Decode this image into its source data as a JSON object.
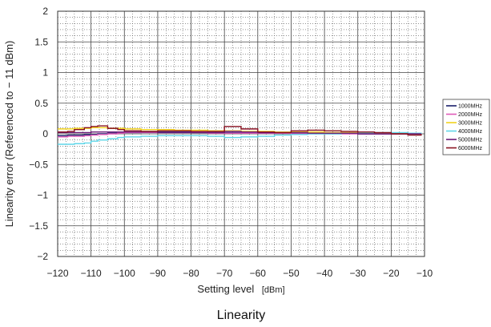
{
  "chart_data": {
    "type": "line",
    "title": "",
    "caption": "Linearity",
    "xlabel": "Setting level",
    "xunit": "[dBm]",
    "ylabel": "Linearity error (Referenced to − 11 dBm)",
    "xlim": [
      -120,
      -10
    ],
    "ylim": [
      -2,
      2
    ],
    "x_ticks": [
      -120,
      -110,
      -100,
      -90,
      -80,
      -70,
      -60,
      -50,
      -40,
      -30,
      -20,
      -10
    ],
    "x_tick_labels": [
      "−120",
      "−110",
      "−100",
      "−90",
      "−80",
      "−70",
      "−60",
      "−50",
      "−40",
      "−30",
      "−20",
      "−10"
    ],
    "y_ticks": [
      2,
      1.5,
      1,
      0.5,
      0,
      -0.5,
      -1,
      -1.5,
      -2
    ],
    "y_tick_labels": [
      "2",
      "1.5",
      "1",
      "0.5",
      "0",
      "−0.5",
      "−1",
      "−1.5",
      "−2"
    ],
    "grid": true,
    "legend_position": "right",
    "series": [
      {
        "name": "1000MHz",
        "color": "#1a1f6b",
        "x": [
          -120,
          -117,
          -115,
          -112,
          -110,
          -108,
          -105,
          -102,
          -100,
          -95,
          -90,
          -85,
          -80,
          -75,
          -70,
          -65,
          -60,
          -55,
          -50,
          -45,
          -40,
          -35,
          -30,
          -25,
          -20,
          -15,
          -11
        ],
        "y": [
          -0.03,
          -0.02,
          -0.02,
          -0.01,
          -0.01,
          0.0,
          0.01,
          0.02,
          0.02,
          0.03,
          0.03,
          0.03,
          0.02,
          0.02,
          0.02,
          0.02,
          0.01,
          0.01,
          0.01,
          0.01,
          0.01,
          0.01,
          0.0,
          0.0,
          0.0,
          0.0,
          0.0
        ]
      },
      {
        "name": "2000MHz",
        "color": "#e05ab8",
        "x": [
          -120,
          -117,
          -115,
          -112,
          -110,
          -108,
          -105,
          -102,
          -100,
          -95,
          -90,
          -85,
          -80,
          -75,
          -70,
          -65,
          -60,
          -55,
          -50,
          -45,
          -40,
          -35,
          -30,
          -25,
          -20,
          -15,
          -11
        ],
        "y": [
          -0.05,
          -0.04,
          -0.04,
          -0.03,
          -0.02,
          -0.01,
          0.0,
          0.01,
          0.02,
          0.02,
          0.02,
          0.02,
          0.02,
          0.01,
          0.01,
          0.01,
          0.01,
          0.01,
          0.0,
          0.0,
          0.0,
          0.0,
          0.0,
          0.0,
          0.0,
          0.0,
          0.0
        ]
      },
      {
        "name": "3000MHz",
        "color": "#f2d21c",
        "x": [
          -120,
          -117,
          -115,
          -112,
          -110,
          -108,
          -105,
          -102,
          -100,
          -95,
          -90,
          -85,
          -80,
          -75,
          -70,
          -65,
          -60,
          -55,
          -50,
          -45,
          -40,
          -35,
          -30,
          -25,
          -20,
          -15,
          -11
        ],
        "y": [
          0.08,
          0.08,
          0.09,
          0.09,
          0.1,
          0.1,
          0.09,
          0.09,
          0.08,
          0.07,
          0.07,
          0.06,
          0.06,
          0.05,
          0.05,
          0.04,
          0.04,
          0.03,
          0.03,
          0.03,
          0.02,
          0.02,
          0.02,
          0.01,
          0.01,
          0.0,
          0.0
        ]
      },
      {
        "name": "4000MHz",
        "color": "#5fd6e8",
        "x": [
          -120,
          -117,
          -115,
          -112,
          -110,
          -108,
          -105,
          -102,
          -100,
          -95,
          -90,
          -85,
          -80,
          -75,
          -70,
          -65,
          -60,
          -55,
          -50,
          -45,
          -40,
          -35,
          -30,
          -25,
          -20,
          -15,
          -11
        ],
        "y": [
          -0.17,
          -0.17,
          -0.16,
          -0.15,
          -0.12,
          -0.1,
          -0.08,
          -0.06,
          -0.05,
          -0.04,
          -0.03,
          -0.03,
          -0.03,
          -0.04,
          -0.06,
          -0.05,
          -0.04,
          -0.02,
          -0.01,
          0.0,
          0.0,
          0.01,
          0.01,
          0.02,
          0.02,
          0.01,
          0.0
        ]
      },
      {
        "name": "5000MHz",
        "color": "#6a1a78",
        "x": [
          -120,
          -117,
          -115,
          -112,
          -110,
          -108,
          -105,
          -102,
          -100,
          -95,
          -90,
          -85,
          -80,
          -75,
          -70,
          -65,
          -60,
          -55,
          -50,
          -45,
          -40,
          -35,
          -30,
          -25,
          -20,
          -15,
          -11
        ],
        "y": [
          0.02,
          0.02,
          0.02,
          0.02,
          0.03,
          0.03,
          0.03,
          0.03,
          0.03,
          0.03,
          0.02,
          0.02,
          0.02,
          0.02,
          0.04,
          0.03,
          0.02,
          0.02,
          0.02,
          0.01,
          0.01,
          0.01,
          0.0,
          0.0,
          0.0,
          0.0,
          0.0
        ]
      },
      {
        "name": "6000MHz",
        "color": "#8a1220",
        "x": [
          -120,
          -117,
          -115,
          -112,
          -110,
          -108,
          -105,
          -102,
          -100,
          -95,
          -90,
          -85,
          -80,
          -75,
          -70,
          -65,
          -60,
          -55,
          -50,
          -45,
          -40,
          -35,
          -30,
          -25,
          -20,
          -15,
          -11
        ],
        "y": [
          0.03,
          0.04,
          0.07,
          0.1,
          0.12,
          0.13,
          0.09,
          0.07,
          0.05,
          0.04,
          0.05,
          0.05,
          0.04,
          0.04,
          0.12,
          0.08,
          0.03,
          0.02,
          0.05,
          0.06,
          0.05,
          0.04,
          0.03,
          0.02,
          0.0,
          -0.02,
          0.0
        ]
      }
    ]
  }
}
